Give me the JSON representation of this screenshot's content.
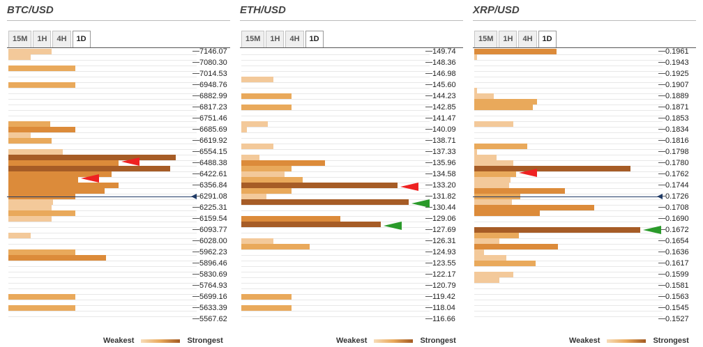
{
  "colors": {
    "weak": "#f3c99a",
    "mid": "#e9a95b",
    "strong": "#dc8b3a",
    "strongest": "#a65c26",
    "bearish": "#e22222",
    "bullish": "#2a9a2a",
    "price": "#1f3a66"
  },
  "legend": {
    "weakest": "Weakest",
    "strongest": "Strongest"
  },
  "panels": [
    {
      "title": "BTC/USD",
      "tabs": [
        "15M",
        "1H",
        "4H",
        "1D"
      ],
      "active_tab": "1D",
      "levels": [
        "7146.07",
        "7080.30",
        "7014.53",
        "6948.76",
        "6882.99",
        "6817.23",
        "6751.46",
        "6685.69",
        "6619.92",
        "6554.15",
        "6488.38",
        "6422.61",
        "6356.84",
        "6291.08",
        "6225.31",
        "6159.54",
        "6093.77",
        "6028.00",
        "5962.23",
        "5896.46",
        "5830.69",
        "5764.93",
        "5699.16",
        "5633.39",
        "5567.62"
      ],
      "bars": [
        [
          0,
          62,
          1
        ],
        [
          1,
          32,
          1
        ],
        [
          3,
          96,
          2
        ],
        [
          6,
          96,
          2
        ],
        [
          13,
          60,
          2
        ],
        [
          14,
          96,
          3
        ],
        [
          15,
          32,
          1
        ],
        [
          16,
          62,
          2
        ],
        [
          18,
          78,
          1
        ],
        [
          19,
          240,
          4
        ],
        [
          20,
          158,
          3
        ],
        [
          21,
          232,
          4
        ],
        [
          22,
          148,
          3
        ],
        [
          23,
          100,
          3
        ],
        [
          24,
          158,
          3
        ],
        [
          25,
          138,
          3
        ],
        [
          26,
          96,
          3
        ],
        [
          27,
          64,
          1
        ],
        [
          28,
          62,
          1
        ],
        [
          29,
          96,
          2
        ],
        [
          30,
          62,
          1
        ],
        [
          33,
          32,
          1
        ],
        [
          36,
          96,
          2
        ],
        [
          37,
          140,
          3
        ],
        [
          44,
          96,
          2
        ],
        [
          46,
          96,
          2
        ]
      ],
      "price_index": 26.0,
      "arrows": [
        [
          "bearish",
          19.7
        ],
        [
          "bearish",
          22.7
        ]
      ]
    },
    {
      "title": "ETH/USD",
      "tabs": [
        "15M",
        "1H",
        "4H",
        "1D"
      ],
      "active_tab": "1D",
      "levels": [
        "149.74",
        "148.36",
        "146.98",
        "145.60",
        "144.23",
        "142.85",
        "141.47",
        "140.09",
        "138.71",
        "137.33",
        "135.96",
        "134.58",
        "133.20",
        "131.82",
        "130.44",
        "129.06",
        "127.69",
        "126.31",
        "124.93",
        "123.55",
        "122.17",
        "120.79",
        "119.42",
        "118.04",
        "116.66"
      ],
      "bars": [
        [
          5,
          46,
          1
        ],
        [
          8,
          72,
          2
        ],
        [
          10,
          72,
          2
        ],
        [
          13,
          38,
          1
        ],
        [
          14,
          8,
          1
        ],
        [
          17,
          46,
          1
        ],
        [
          19,
          26,
          1
        ],
        [
          20,
          120,
          3
        ],
        [
          21,
          72,
          2
        ],
        [
          22,
          62,
          1
        ],
        [
          23,
          88,
          2
        ],
        [
          24,
          224,
          4
        ],
        [
          25,
          72,
          2
        ],
        [
          26,
          36,
          1
        ],
        [
          27,
          240,
          4
        ],
        [
          30,
          142,
          3
        ],
        [
          31,
          200,
          4
        ],
        [
          34,
          46,
          1
        ],
        [
          35,
          98,
          2
        ],
        [
          44,
          72,
          2
        ],
        [
          46,
          72,
          2
        ]
      ],
      "price_index": null,
      "arrows": [
        [
          "bearish",
          24.3
        ],
        [
          "bullish",
          27.2
        ],
        [
          "bullish",
          31.2
        ]
      ]
    },
    {
      "title": "XRP/USD",
      "tabs": [
        "15M",
        "1H",
        "4H",
        "1D"
      ],
      "active_tab": "1D",
      "levels": [
        "0.1961",
        "0.1943",
        "0.1925",
        "0.1907",
        "0.1889",
        "0.1871",
        "0.1853",
        "0.1834",
        "0.1816",
        "0.1798",
        "0.1780",
        "0.1762",
        "0.1744",
        "0.1726",
        "0.1708",
        "0.1690",
        "0.1672",
        "0.1654",
        "0.1636",
        "0.1617",
        "0.1599",
        "0.1581",
        "0.1563",
        "0.1545",
        "0.1527"
      ],
      "bars": [
        [
          0,
          118,
          3
        ],
        [
          1,
          4,
          1
        ],
        [
          7,
          4,
          1
        ],
        [
          8,
          28,
          1
        ],
        [
          9,
          90,
          2
        ],
        [
          10,
          84,
          2
        ],
        [
          13,
          56,
          1
        ],
        [
          17,
          76,
          2
        ],
        [
          18,
          4,
          1
        ],
        [
          19,
          32,
          1
        ],
        [
          20,
          56,
          1
        ],
        [
          21,
          224,
          4
        ],
        [
          22,
          60,
          2
        ],
        [
          23,
          52,
          1
        ],
        [
          24,
          50,
          1
        ],
        [
          25,
          130,
          3
        ],
        [
          26,
          66,
          2
        ],
        [
          27,
          54,
          1
        ],
        [
          28,
          172,
          3
        ],
        [
          29,
          94,
          3
        ],
        [
          32,
          238,
          4
        ],
        [
          33,
          64,
          2
        ],
        [
          34,
          36,
          1
        ],
        [
          35,
          120,
          3
        ],
        [
          36,
          14,
          1
        ],
        [
          37,
          46,
          1
        ],
        [
          38,
          88,
          2
        ],
        [
          40,
          56,
          1
        ],
        [
          41,
          36,
          1
        ]
      ],
      "price_index": 26.0,
      "arrows": [
        [
          "bearish",
          21.8
        ],
        [
          "bullish",
          32.0
        ]
      ]
    }
  ]
}
